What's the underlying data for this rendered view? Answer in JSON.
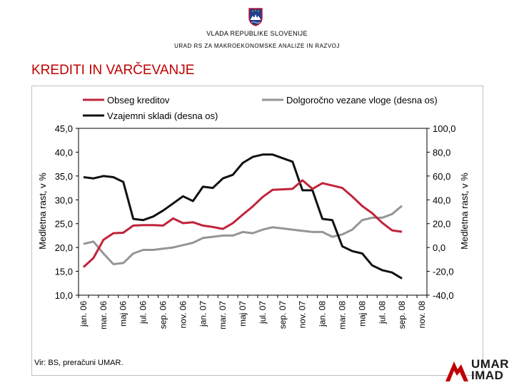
{
  "header": {
    "line1": "VLADA REPUBLIKE SLOVENIJE",
    "line2": "URAD RS ZA MAKROEKONOMSKE ANALIZE IN RAZVOJ",
    "title": "KREDITI IN VARČEVANJE"
  },
  "footer": {
    "source": "Vir: BS, preračuni UMAR.",
    "logo_line1": "UMAR",
    "logo_line2": "IMAD"
  },
  "colors": {
    "title": "#c00000",
    "obseg": "#c0243a",
    "vloge": "#959595",
    "skladi": "#111111"
  },
  "chart_data": {
    "type": "line",
    "title": "",
    "x_labels": [
      "jan. 06",
      "mar. 06",
      "maj 06",
      "jul. 06",
      "sep. 06",
      "nov. 06",
      "jan. 07",
      "mar. 07",
      "maj 07",
      "jul. 07",
      "sep. 07",
      "nov. 07",
      "jan. 08",
      "mar. 08",
      "maj 08",
      "jul. 08",
      "sep. 08",
      "nov. 08"
    ],
    "x_count": 35,
    "ylabel_left": "Medletna rast, v %",
    "ylabel_right": "Medletna rast, v %",
    "ylim_left": [
      10,
      45
    ],
    "ylim_right": [
      -40,
      100
    ],
    "yticks_left": [
      "45,0",
      "40,0",
      "35,0",
      "30,0",
      "25,0",
      "20,0",
      "15,0",
      "10,0"
    ],
    "yticks_right": [
      "100,0",
      "80,0",
      "60,0",
      "40,0",
      "20,0",
      "0,0",
      "-20,0",
      "-40,0"
    ],
    "legend_position": "top",
    "series": [
      {
        "name": "Obseg kreditov",
        "axis": "left",
        "color": "#c0243a",
        "values": [
          15.9,
          17.8,
          21.6,
          23.0,
          23.1,
          24.6,
          24.7,
          24.7,
          24.6,
          26.1,
          25.1,
          25.3,
          24.6,
          24.3,
          23.9,
          25.1,
          26.9,
          28.6,
          30.6,
          32.1,
          32.2,
          32.3,
          34.1,
          32.3,
          33.5,
          33.0,
          32.5,
          30.7,
          28.7,
          27.2,
          25.2,
          23.6,
          23.3
        ]
      },
      {
        "name": "Vzajemni skladi (desna os)",
        "axis": "right",
        "color": "#111111",
        "values": [
          59,
          58,
          60,
          59,
          55,
          24,
          23,
          26,
          31,
          37,
          43,
          39,
          51,
          50,
          58,
          61,
          71,
          76,
          78,
          78,
          75,
          72,
          48,
          48,
          24,
          23,
          1,
          -3,
          -5,
          -15,
          -19,
          -21,
          -26
        ]
      },
      {
        "name": "Dolgoročno vezane vloge (desna os)",
        "axis": "right",
        "color": "#959595",
        "values": [
          3,
          5,
          -5,
          -14,
          -13,
          -5,
          -2,
          -2,
          -1,
          0,
          2,
          4,
          8,
          9,
          10,
          10,
          13,
          12,
          15,
          17,
          16,
          15,
          14,
          13,
          13,
          9,
          11,
          15,
          23,
          25,
          25,
          28,
          35
        ]
      }
    ]
  }
}
